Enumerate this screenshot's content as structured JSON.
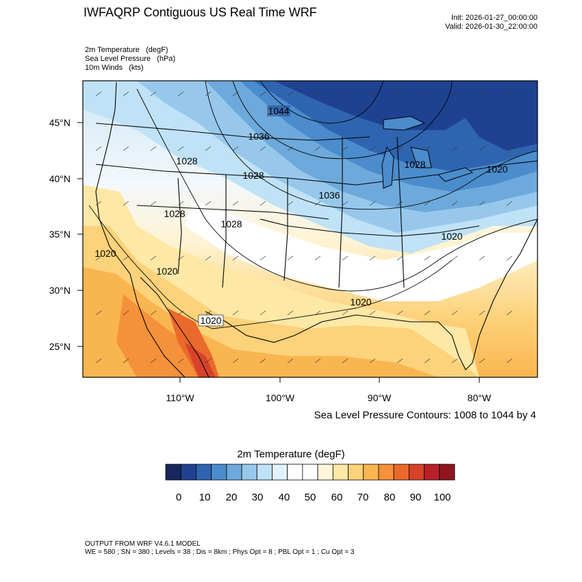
{
  "header": {
    "title": "IWFAQRP Contiguous US Real Time WRF",
    "init": "Init: 2026-01-27_00:00:00",
    "valid": "Valid: 2026-01-30_22:00:00"
  },
  "fields": [
    {
      "name": "2m Temperature",
      "unit": "(degF)"
    },
    {
      "name": "Sea Level Pressure",
      "unit": "(hPa)"
    },
    {
      "name": "10m Winds",
      "unit": "(kts)"
    }
  ],
  "axes": {
    "lat_labels": [
      "45°N",
      "40°N",
      "35°N",
      "30°N",
      "25°N"
    ],
    "lon_labels": [
      "110°W",
      "100°W",
      "90°W",
      "80°W"
    ]
  },
  "contour_note": "Sea Level Pressure Contours: 1008 to 1044 by 4",
  "contour_labels": [
    "1044",
    "1036",
    "1028",
    "1028",
    "1028",
    "1028",
    "1036",
    "1028",
    "1020",
    "1020",
    "1020",
    "1020",
    "1020",
    "1020"
  ],
  "colorbar": {
    "title": "2m Temperature  (degF)",
    "colors": [
      "#17275d",
      "#1f4290",
      "#2f64b0",
      "#4b8ccc",
      "#6ea9db",
      "#97c8ec",
      "#bfe2f6",
      "#e2f2fb",
      "#ffffff",
      "#ffffff",
      "#fff6d9",
      "#fde8a6",
      "#fcd27a",
      "#f9b54f",
      "#f5913a",
      "#ea6a2c",
      "#d6422a",
      "#b8202a",
      "#8f1620"
    ],
    "labels": [
      "0",
      "10",
      "20",
      "30",
      "40",
      "50",
      "60",
      "70",
      "80",
      "90",
      "100"
    ]
  },
  "footer": {
    "line1": "OUTPUT FROM WRF V4.6.1 MODEL",
    "line2": "WE = 580 ; SN = 380 ; Levels = 38 ; Dis = 8km ; Phys Opt = 8 ; PBL Opt = 1 ; Cu Opt = 3"
  }
}
